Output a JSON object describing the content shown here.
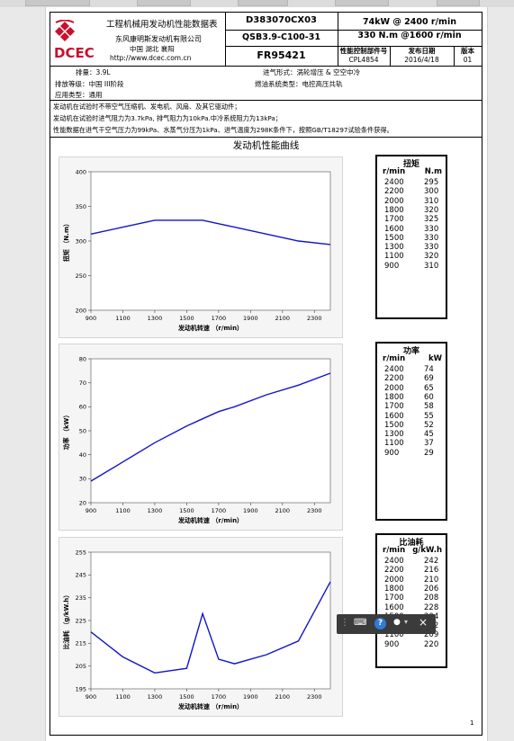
{
  "header": {
    "title": "工程机械用发动机性能数据表",
    "company": "东风康明斯发动机有限公司",
    "location": "中国 湖北 襄阳",
    "website": "http://www.dcec.com.cn",
    "doc_no": "D383070CX03",
    "model": "QSB3.9-C100-31",
    "fr": "FR95421",
    "power_rating": "74kW @ 2400 r/min",
    "torque_rating": "330 N.m @1600 r/min",
    "cpl_label": "性能控制部件号",
    "cpl_value": "CPL4854",
    "date_label": "发布日期",
    "date_value": "2016/4/18",
    "version_label": "版本",
    "version_value": "01",
    "logo_text": "DCEC"
  },
  "specs": {
    "displacement": "排量：3.9L",
    "intake": "进气形式：涡轮增压 & 空空中冷",
    "emission": "排放等级：中国 III阶段",
    "fuel_system": "燃油系统类型：电控高压共轨",
    "application": "应用类型：通用"
  },
  "notes": [
    "发动机在试验时不带空气压缩机、发电机、风扇、及其它驱动件；",
    "发动机在试验时进气阻力为3.7kPa, 排气阻力为10kPa.中冷系统阻力为13kPa；",
    "性能数据在进气干空气压力为99kPa、水蒸气分压为1kPa、进气温度为298K条件下，按照GB/T18297试验条件获得。"
  ],
  "section_title": "发动机性能曲线",
  "chart_data": [
    {
      "type": "line",
      "xlabel": "发动机转速 （r/min）",
      "ylabel": "扭矩 （N.m）",
      "x": [
        900,
        1100,
        1300,
        1500,
        1600,
        1700,
        1800,
        2000,
        2200,
        2400
      ],
      "values": [
        310,
        320,
        330,
        330,
        330,
        325,
        320,
        310,
        300,
        295
      ],
      "xlim": [
        900,
        2400
      ],
      "ylim": [
        200,
        400
      ],
      "xticks": [
        900,
        1100,
        1300,
        1500,
        1700,
        1900,
        2100,
        2300
      ],
      "yticks": [
        200,
        250,
        300,
        350,
        400
      ],
      "color": "#1414cc",
      "grid": false
    },
    {
      "type": "line",
      "xlabel": "发动机转速 （r/min）",
      "ylabel": "功率 （kW）",
      "x": [
        900,
        1100,
        1300,
        1500,
        1600,
        1700,
        1800,
        2000,
        2200,
        2400
      ],
      "values": [
        29,
        37,
        45,
        52,
        55,
        58,
        60,
        65,
        69,
        74
      ],
      "xlim": [
        900,
        2400
      ],
      "ylim": [
        20,
        80
      ],
      "xticks": [
        900,
        1100,
        1300,
        1500,
        1700,
        1900,
        2100,
        2300
      ],
      "yticks": [
        20,
        30,
        40,
        50,
        60,
        70,
        80
      ],
      "color": "#1414cc",
      "grid": false
    },
    {
      "type": "line",
      "xlabel": "发动机转速 （r/min）",
      "ylabel": "比油耗 （g/kW.h）",
      "x": [
        900,
        1100,
        1300,
        1500,
        1600,
        1700,
        1800,
        2000,
        2200,
        2400
      ],
      "values": [
        220,
        209,
        202,
        204,
        228,
        208,
        206,
        210,
        216,
        242
      ],
      "xlim": [
        900,
        2400
      ],
      "ylim": [
        195,
        255
      ],
      "xticks": [
        900,
        1100,
        1300,
        1500,
        1700,
        1900,
        2100,
        2300
      ],
      "yticks": [
        195,
        205,
        215,
        225,
        235,
        245,
        255
      ],
      "color": "#1414cc",
      "grid": false
    }
  ],
  "tables": [
    {
      "title": "扭矩",
      "col1": "r/min",
      "col2": "N.m",
      "rows": [
        [
          "2400",
          "295"
        ],
        [
          "2200",
          "300"
        ],
        [
          "2000",
          "310"
        ],
        [
          "1800",
          "320"
        ],
        [
          "1700",
          "325"
        ],
        [
          "1600",
          "330"
        ],
        [
          "1500",
          "330"
        ],
        [
          "1300",
          "330"
        ],
        [
          "1100",
          "320"
        ],
        [
          "900",
          "310"
        ]
      ]
    },
    {
      "title": "功率",
      "col1": "r/min",
      "col2": "kW",
      "rows": [
        [
          "2400",
          "74"
        ],
        [
          "2200",
          "69"
        ],
        [
          "2000",
          "65"
        ],
        [
          "1800",
          "60"
        ],
        [
          "1700",
          "58"
        ],
        [
          "1600",
          "55"
        ],
        [
          "1500",
          "52"
        ],
        [
          "1300",
          "45"
        ],
        [
          "1100",
          "37"
        ],
        [
          "900",
          "29"
        ]
      ]
    },
    {
      "title": "比油耗",
      "col1": "r/min",
      "col2": "g/kW.h",
      "rows": [
        [
          "2400",
          "242"
        ],
        [
          "2200",
          "216"
        ],
        [
          "2000",
          "210"
        ],
        [
          "1800",
          "206"
        ],
        [
          "1700",
          "208"
        ],
        [
          "1600",
          "228"
        ],
        [
          "1500",
          "204"
        ],
        [
          "1300",
          "202"
        ],
        [
          "1100",
          "209"
        ],
        [
          "900",
          "220"
        ]
      ]
    }
  ],
  "page_number": "1",
  "ime_toolbar": {
    "help_icon_glyph": "?",
    "mic_icon_glyph": "🎤",
    "close_icon_glyph": "×"
  }
}
